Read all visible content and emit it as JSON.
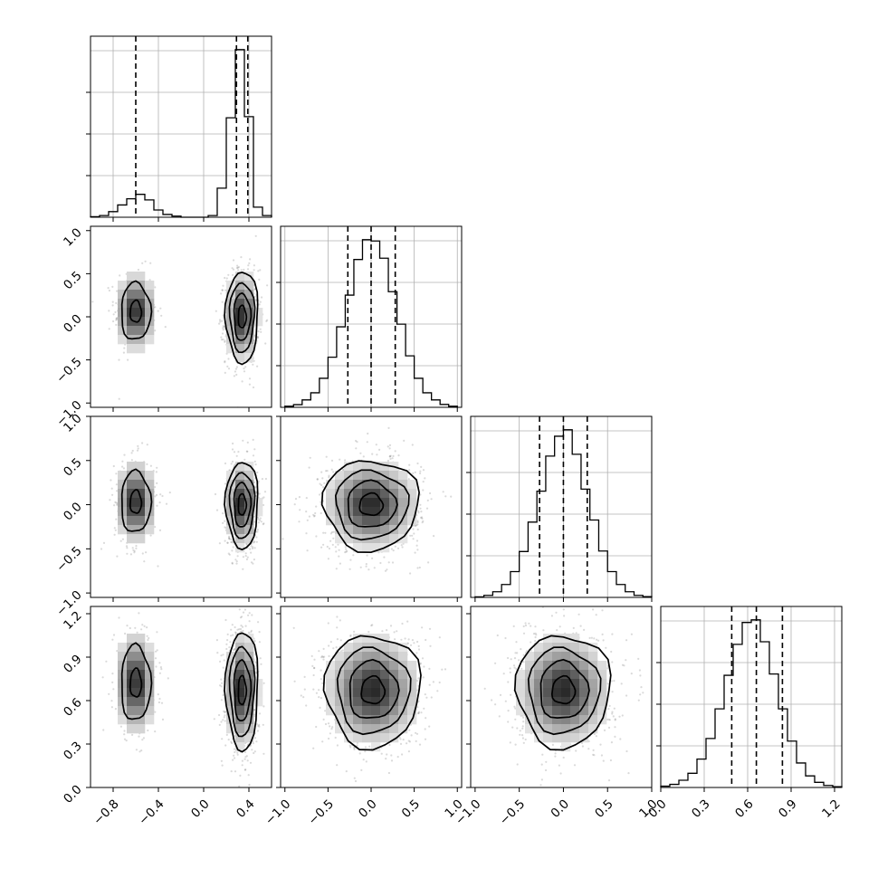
{
  "chart_data": {
    "type": "corner",
    "description": "Corner plot of four parameters: 1-D marginal histograms on the diagonal, 2-D density (points + shaded grid + contours) below the diagonal.",
    "params": [
      {
        "range": [
          -1.0,
          0.6
        ],
        "ticks": [
          -0.8,
          -0.4,
          0.0,
          0.4
        ],
        "tick_labels": [
          "−0.8",
          "−0.4",
          "0.0",
          "0.4"
        ],
        "quantiles": [
          -0.6,
          0.29,
          0.39
        ]
      },
      {
        "range": [
          -1.05,
          1.05
        ],
        "ticks": [
          -1.0,
          -0.5,
          0.0,
          0.5,
          1.0
        ],
        "tick_labels": [
          "−1.0",
          "−0.5",
          "0.0",
          "0.5",
          "1.0"
        ],
        "quantiles": [
          -0.27,
          0.0,
          0.28
        ]
      },
      {
        "range": [
          -1.05,
          1.0
        ],
        "ticks": [
          -1.0,
          -0.5,
          0.0,
          0.5,
          1.0
        ],
        "tick_labels": [
          "−1.0",
          "−0.5",
          "0.0",
          "0.5",
          "1.0"
        ],
        "quantiles": [
          -0.27,
          0.0,
          0.27
        ]
      },
      {
        "range": [
          0.0,
          1.25
        ],
        "ticks": [
          0.0,
          0.3,
          0.6,
          0.9,
          1.2
        ],
        "tick_labels": [
          "0.0",
          "0.3",
          "0.6",
          "0.9",
          "1.2"
        ],
        "quantiles": [
          0.49,
          0.66,
          0.84
        ]
      }
    ],
    "histograms": [
      {
        "param": 0,
        "edges": [
          -1.0,
          -0.92,
          -0.84,
          -0.76,
          -0.68,
          -0.6,
          -0.52,
          -0.44,
          -0.36,
          -0.28,
          -0.2,
          -0.12,
          -0.04,
          0.04,
          0.12,
          0.2,
          0.28,
          0.36,
          0.44,
          0.52,
          0.6
        ],
        "counts": [
          1,
          3,
          10,
          22,
          33,
          41,
          31,
          13,
          5,
          2,
          0,
          0,
          0,
          3,
          52,
          178,
          300,
          180,
          18,
          3
        ]
      },
      {
        "param": 1,
        "edges": [
          -1.0,
          -0.9,
          -0.8,
          -0.7,
          -0.6,
          -0.5,
          -0.4,
          -0.3,
          -0.2,
          -0.1,
          0.0,
          0.1,
          0.2,
          0.3,
          0.4,
          0.5,
          0.6,
          0.7,
          0.8,
          0.9,
          1.0
        ],
        "counts": [
          4,
          10,
          28,
          55,
          110,
          190,
          305,
          425,
          560,
          635,
          630,
          565,
          438,
          315,
          195,
          110,
          55,
          28,
          11,
          4
        ]
      },
      {
        "param": 2,
        "edges": [
          -1.0,
          -0.9,
          -0.8,
          -0.7,
          -0.6,
          -0.5,
          -0.4,
          -0.3,
          -0.2,
          -0.1,
          0.0,
          0.1,
          0.2,
          0.3,
          0.4,
          0.5,
          0.6,
          0.7,
          0.8,
          0.9,
          1.0
        ],
        "counts": [
          2,
          8,
          22,
          50,
          100,
          178,
          292,
          412,
          548,
          625,
          650,
          555,
          420,
          300,
          180,
          100,
          50,
          22,
          8,
          3
        ]
      },
      {
        "param": 3,
        "edges": [
          0.0,
          0.0625,
          0.125,
          0.1875,
          0.25,
          0.3125,
          0.375,
          0.4375,
          0.5,
          0.5625,
          0.625,
          0.6875,
          0.75,
          0.8125,
          0.875,
          0.9375,
          1.0,
          1.0625,
          1.125,
          1.1875,
          1.25
        ],
        "counts": [
          5,
          12,
          28,
          55,
          110,
          190,
          305,
          435,
          555,
          640,
          650,
          565,
          440,
          305,
          180,
          95,
          45,
          20,
          8,
          3
        ]
      }
    ],
    "blobs_2d": [
      {
        "x": 0,
        "y": 1,
        "modes": [
          {
            "x": -0.6,
            "y": 0.06,
            "sx": 0.09,
            "sy": 0.23,
            "w": 0.28
          },
          {
            "x": 0.34,
            "y": 0.0,
            "sx": 0.07,
            "sy": 0.26,
            "w": 0.72
          }
        ]
      },
      {
        "x": 0,
        "y": 2,
        "modes": [
          {
            "x": -0.6,
            "y": 0.03,
            "sx": 0.09,
            "sy": 0.24,
            "w": 0.28
          },
          {
            "x": 0.34,
            "y": 0.0,
            "sx": 0.07,
            "sy": 0.24,
            "w": 0.72
          }
        ]
      },
      {
        "x": 0,
        "y": 3,
        "modes": [
          {
            "x": -0.6,
            "y": 0.72,
            "sx": 0.09,
            "sy": 0.18,
            "w": 0.28
          },
          {
            "x": 0.34,
            "y": 0.67,
            "sx": 0.07,
            "sy": 0.2,
            "w": 0.72
          }
        ]
      },
      {
        "x": 1,
        "y": 2,
        "modes": [
          {
            "x": 0.0,
            "y": 0.0,
            "sx": 0.27,
            "sy": 0.25,
            "w": 1.0
          }
        ]
      },
      {
        "x": 1,
        "y": 3,
        "modes": [
          {
            "x": 0.02,
            "y": 0.67,
            "sx": 0.27,
            "sy": 0.19,
            "w": 1.0
          }
        ]
      },
      {
        "x": 2,
        "y": 3,
        "modes": [
          {
            "x": 0.0,
            "y": 0.67,
            "sx": 0.26,
            "sy": 0.19,
            "w": 1.0
          }
        ]
      }
    ]
  }
}
